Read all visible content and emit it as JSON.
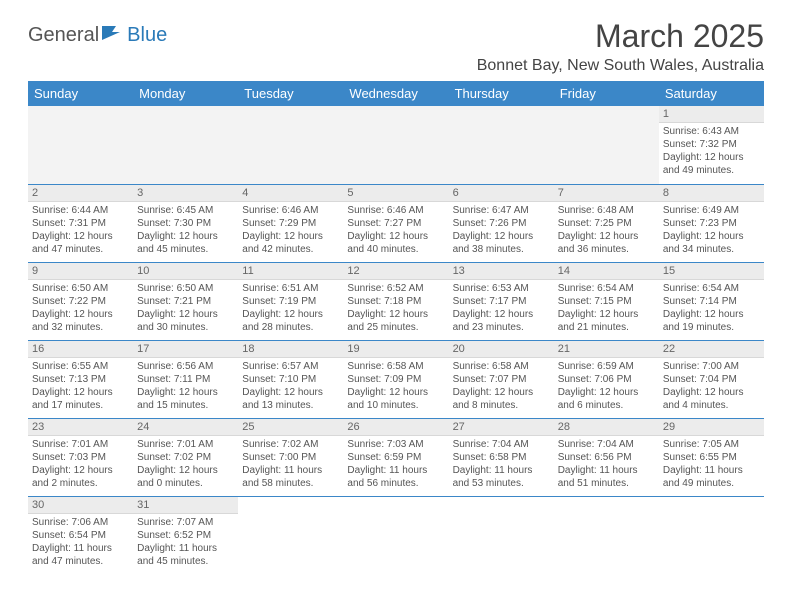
{
  "logo": {
    "text1": "General",
    "text2": "Blue"
  },
  "title": "March 2025",
  "location": "Bonnet Bay, New South Wales, Australia",
  "colors": {
    "header_bg": "#3b87c8",
    "header_text": "#ffffff",
    "accent": "#2a7ab8",
    "daynum_bg": "#ececec",
    "body_text": "#555555"
  },
  "weekdays": [
    "Sunday",
    "Monday",
    "Tuesday",
    "Wednesday",
    "Thursday",
    "Friday",
    "Saturday"
  ],
  "weeks": [
    [
      null,
      null,
      null,
      null,
      null,
      null,
      {
        "n": "1",
        "sr": "Sunrise: 6:43 AM",
        "ss": "Sunset: 7:32 PM",
        "dl": "Daylight: 12 hours and 49 minutes."
      }
    ],
    [
      {
        "n": "2",
        "sr": "Sunrise: 6:44 AM",
        "ss": "Sunset: 7:31 PM",
        "dl": "Daylight: 12 hours and 47 minutes."
      },
      {
        "n": "3",
        "sr": "Sunrise: 6:45 AM",
        "ss": "Sunset: 7:30 PM",
        "dl": "Daylight: 12 hours and 45 minutes."
      },
      {
        "n": "4",
        "sr": "Sunrise: 6:46 AM",
        "ss": "Sunset: 7:29 PM",
        "dl": "Daylight: 12 hours and 42 minutes."
      },
      {
        "n": "5",
        "sr": "Sunrise: 6:46 AM",
        "ss": "Sunset: 7:27 PM",
        "dl": "Daylight: 12 hours and 40 minutes."
      },
      {
        "n": "6",
        "sr": "Sunrise: 6:47 AM",
        "ss": "Sunset: 7:26 PM",
        "dl": "Daylight: 12 hours and 38 minutes."
      },
      {
        "n": "7",
        "sr": "Sunrise: 6:48 AM",
        "ss": "Sunset: 7:25 PM",
        "dl": "Daylight: 12 hours and 36 minutes."
      },
      {
        "n": "8",
        "sr": "Sunrise: 6:49 AM",
        "ss": "Sunset: 7:23 PM",
        "dl": "Daylight: 12 hours and 34 minutes."
      }
    ],
    [
      {
        "n": "9",
        "sr": "Sunrise: 6:50 AM",
        "ss": "Sunset: 7:22 PM",
        "dl": "Daylight: 12 hours and 32 minutes."
      },
      {
        "n": "10",
        "sr": "Sunrise: 6:50 AM",
        "ss": "Sunset: 7:21 PM",
        "dl": "Daylight: 12 hours and 30 minutes."
      },
      {
        "n": "11",
        "sr": "Sunrise: 6:51 AM",
        "ss": "Sunset: 7:19 PM",
        "dl": "Daylight: 12 hours and 28 minutes."
      },
      {
        "n": "12",
        "sr": "Sunrise: 6:52 AM",
        "ss": "Sunset: 7:18 PM",
        "dl": "Daylight: 12 hours and 25 minutes."
      },
      {
        "n": "13",
        "sr": "Sunrise: 6:53 AM",
        "ss": "Sunset: 7:17 PM",
        "dl": "Daylight: 12 hours and 23 minutes."
      },
      {
        "n": "14",
        "sr": "Sunrise: 6:54 AM",
        "ss": "Sunset: 7:15 PM",
        "dl": "Daylight: 12 hours and 21 minutes."
      },
      {
        "n": "15",
        "sr": "Sunrise: 6:54 AM",
        "ss": "Sunset: 7:14 PM",
        "dl": "Daylight: 12 hours and 19 minutes."
      }
    ],
    [
      {
        "n": "16",
        "sr": "Sunrise: 6:55 AM",
        "ss": "Sunset: 7:13 PM",
        "dl": "Daylight: 12 hours and 17 minutes."
      },
      {
        "n": "17",
        "sr": "Sunrise: 6:56 AM",
        "ss": "Sunset: 7:11 PM",
        "dl": "Daylight: 12 hours and 15 minutes."
      },
      {
        "n": "18",
        "sr": "Sunrise: 6:57 AM",
        "ss": "Sunset: 7:10 PM",
        "dl": "Daylight: 12 hours and 13 minutes."
      },
      {
        "n": "19",
        "sr": "Sunrise: 6:58 AM",
        "ss": "Sunset: 7:09 PM",
        "dl": "Daylight: 12 hours and 10 minutes."
      },
      {
        "n": "20",
        "sr": "Sunrise: 6:58 AM",
        "ss": "Sunset: 7:07 PM",
        "dl": "Daylight: 12 hours and 8 minutes."
      },
      {
        "n": "21",
        "sr": "Sunrise: 6:59 AM",
        "ss": "Sunset: 7:06 PM",
        "dl": "Daylight: 12 hours and 6 minutes."
      },
      {
        "n": "22",
        "sr": "Sunrise: 7:00 AM",
        "ss": "Sunset: 7:04 PM",
        "dl": "Daylight: 12 hours and 4 minutes."
      }
    ],
    [
      {
        "n": "23",
        "sr": "Sunrise: 7:01 AM",
        "ss": "Sunset: 7:03 PM",
        "dl": "Daylight: 12 hours and 2 minutes."
      },
      {
        "n": "24",
        "sr": "Sunrise: 7:01 AM",
        "ss": "Sunset: 7:02 PM",
        "dl": "Daylight: 12 hours and 0 minutes."
      },
      {
        "n": "25",
        "sr": "Sunrise: 7:02 AM",
        "ss": "Sunset: 7:00 PM",
        "dl": "Daylight: 11 hours and 58 minutes."
      },
      {
        "n": "26",
        "sr": "Sunrise: 7:03 AM",
        "ss": "Sunset: 6:59 PM",
        "dl": "Daylight: 11 hours and 56 minutes."
      },
      {
        "n": "27",
        "sr": "Sunrise: 7:04 AM",
        "ss": "Sunset: 6:58 PM",
        "dl": "Daylight: 11 hours and 53 minutes."
      },
      {
        "n": "28",
        "sr": "Sunrise: 7:04 AM",
        "ss": "Sunset: 6:56 PM",
        "dl": "Daylight: 11 hours and 51 minutes."
      },
      {
        "n": "29",
        "sr": "Sunrise: 7:05 AM",
        "ss": "Sunset: 6:55 PM",
        "dl": "Daylight: 11 hours and 49 minutes."
      }
    ],
    [
      {
        "n": "30",
        "sr": "Sunrise: 7:06 AM",
        "ss": "Sunset: 6:54 PM",
        "dl": "Daylight: 11 hours and 47 minutes."
      },
      {
        "n": "31",
        "sr": "Sunrise: 7:07 AM",
        "ss": "Sunset: 6:52 PM",
        "dl": "Daylight: 11 hours and 45 minutes."
      },
      null,
      null,
      null,
      null,
      null
    ]
  ]
}
